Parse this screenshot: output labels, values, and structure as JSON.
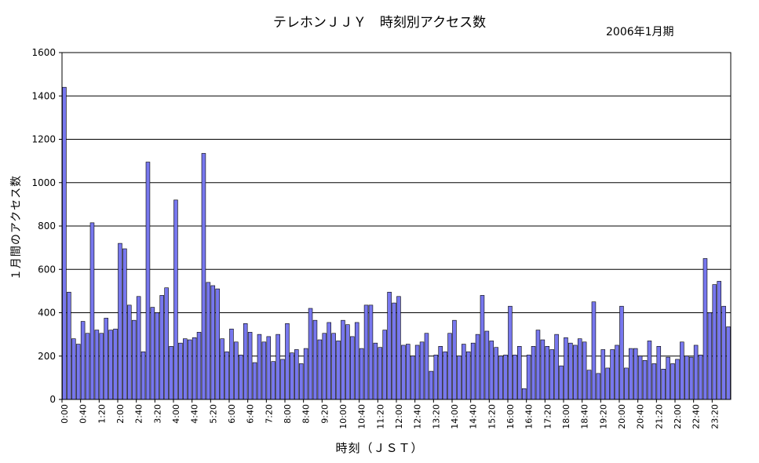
{
  "chart_data": {
    "type": "bar",
    "title": "テレホンＪＪＹ　時刻別アクセス数",
    "subtitle": "2006年1月期",
    "xlabel": "時刻（ＪＳＴ）",
    "ylabel": "１月間のアクセス数",
    "ylim": [
      0,
      1600
    ],
    "yticks": [
      0,
      200,
      400,
      600,
      800,
      1000,
      1200,
      1400,
      1600
    ],
    "grid": true,
    "bar_color": "#7777ee",
    "x_tick_labels": [
      "0:00",
      "0:40",
      "1:20",
      "2:00",
      "2:40",
      "3:20",
      "4:00",
      "4:40",
      "5:20",
      "6:00",
      "6:40",
      "7:20",
      "8:00",
      "8:40",
      "9:20",
      "10:00",
      "10:40",
      "11:20",
      "12:00",
      "12:40",
      "13:20",
      "14:00",
      "14:40",
      "15:20",
      "16:00",
      "16:40",
      "17:20",
      "18:00",
      "18:40",
      "19:20",
      "20:00",
      "20:40",
      "21:20",
      "22:00",
      "22:40",
      "23:20"
    ],
    "bar_interval_minutes": 10,
    "values": [
      1440,
      495,
      280,
      255,
      360,
      305,
      815,
      320,
      305,
      375,
      320,
      325,
      720,
      695,
      435,
      365,
      475,
      220,
      1095,
      425,
      400,
      480,
      515,
      245,
      920,
      260,
      280,
      275,
      285,
      310,
      1135,
      540,
      525,
      510,
      280,
      220,
      325,
      265,
      205,
      350,
      310,
      170,
      300,
      265,
      290,
      175,
      300,
      185,
      350,
      215,
      230,
      165,
      235,
      420,
      365,
      275,
      305,
      355,
      305,
      270,
      365,
      345,
      290,
      355,
      235,
      435,
      435,
      260,
      240,
      320,
      495,
      445,
      475,
      250,
      255,
      200,
      250,
      265,
      305,
      130,
      205,
      245,
      220,
      305,
      365,
      200,
      255,
      220,
      260,
      300,
      480,
      315,
      270,
      240,
      200,
      205,
      430,
      205,
      245,
      50,
      205,
      245,
      320,
      275,
      245,
      230,
      300,
      155,
      285,
      260,
      250,
      280,
      265,
      135,
      450,
      120,
      230,
      145,
      230,
      250,
      430,
      145,
      235,
      235,
      200,
      180,
      270,
      165,
      245,
      140,
      195,
      165,
      185,
      265,
      200,
      195,
      250,
      205,
      650,
      400,
      530,
      545,
      430,
      335
    ]
  }
}
